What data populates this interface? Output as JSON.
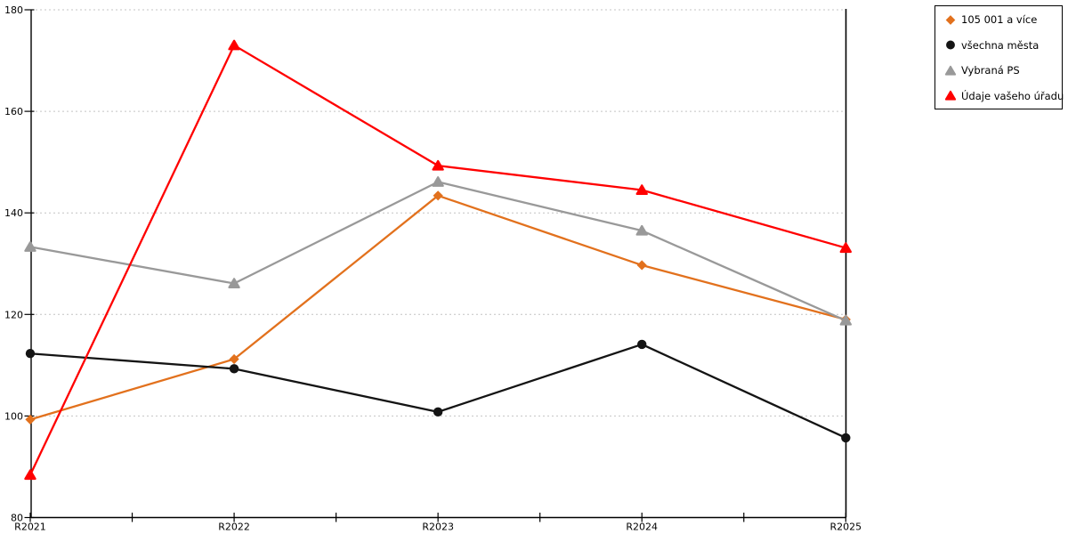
{
  "chart_data": {
    "type": "line",
    "title": "",
    "xlabel": "",
    "ylabel": "",
    "categories": [
      "R2021",
      "R2022",
      "R2023",
      "R2024",
      "R2025"
    ],
    "y_ticks": [
      80,
      100,
      120,
      140,
      160,
      180
    ],
    "ylim": [
      80,
      180
    ],
    "grid": "horizontal-dashed",
    "legend_position": "top-right-outside",
    "series": [
      {
        "name": "105 001 a více",
        "marker": "diamond",
        "color": "#E2711D",
        "values": [
          99.3,
          111.2,
          143.4,
          129.7,
          119.0
        ]
      },
      {
        "name": "všechna města",
        "marker": "circle",
        "color": "#141414",
        "values": [
          112.3,
          109.3,
          100.8,
          114.1,
          95.7
        ]
      },
      {
        "name": "Vybraná PS",
        "marker": "triangle",
        "color": "#999999",
        "values": [
          133.3,
          126.1,
          146.1,
          136.5,
          118.8
        ]
      },
      {
        "name": "Údaje vašeho úřadu",
        "marker": "triangle",
        "color": "#FF0000",
        "values": [
          88.4,
          173.0,
          149.3,
          144.5,
          133.1
        ]
      }
    ]
  },
  "colors": {
    "background": "#FFFFFF",
    "axis": "#000000",
    "grid": "#C4C4C4",
    "tick_label": "#000000",
    "legend_border": "#000000"
  }
}
